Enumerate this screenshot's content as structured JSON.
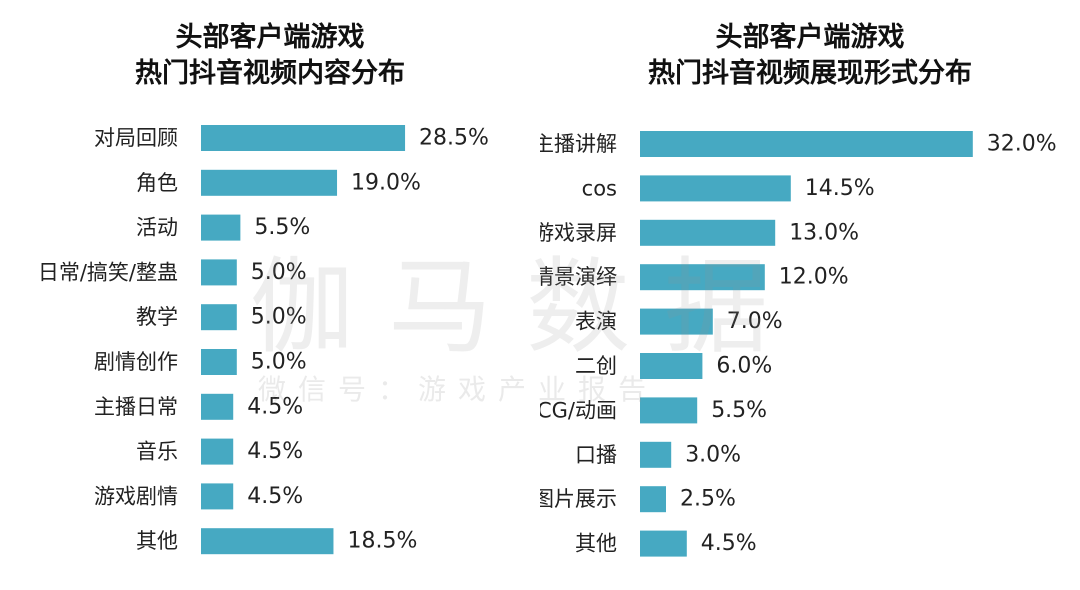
{
  "colors": {
    "bar": "#46A9C2",
    "text": "#222222"
  },
  "watermark": {
    "main": "伽马数据",
    "sub": "微信号：游戏产业报告"
  },
  "chart_data": [
    {
      "type": "bar",
      "orientation": "horizontal",
      "title_line1": "头部客户端游戏",
      "title_line2": "热门抖音视频内容分布",
      "categories": [
        "对局回顾",
        "角色",
        "活动",
        "日常/搞笑/整蛊",
        "教学",
        "剧情创作",
        "主播日常",
        "音乐",
        "游戏剧情",
        "其他"
      ],
      "values": [
        28.5,
        19.0,
        5.5,
        5.0,
        5.0,
        5.0,
        4.5,
        4.5,
        4.5,
        18.5
      ],
      "value_labels": [
        "28.5%",
        "19.0%",
        "5.5%",
        "5.0%",
        "5.0%",
        "5.0%",
        "4.5%",
        "4.5%",
        "4.5%",
        "18.5%"
      ],
      "grid": false
    },
    {
      "type": "bar",
      "orientation": "horizontal",
      "title_line1": "头部客户端游戏",
      "title_line2": "热门抖音视频展现形式分布",
      "categories": [
        "主播讲解",
        "cos",
        "游戏录屏",
        "情景演绎",
        "表演",
        "二创",
        "CG/动画",
        "口播",
        "图片展示",
        "其他"
      ],
      "values": [
        32.0,
        14.5,
        13.0,
        12.0,
        7.0,
        6.0,
        5.5,
        3.0,
        2.5,
        4.5
      ],
      "value_labels": [
        "32.0%",
        "14.5%",
        "13.0%",
        "12.0%",
        "7.0%",
        "6.0%",
        "5.5%",
        "3.0%",
        "2.5%",
        "4.5%"
      ],
      "grid": false
    }
  ]
}
